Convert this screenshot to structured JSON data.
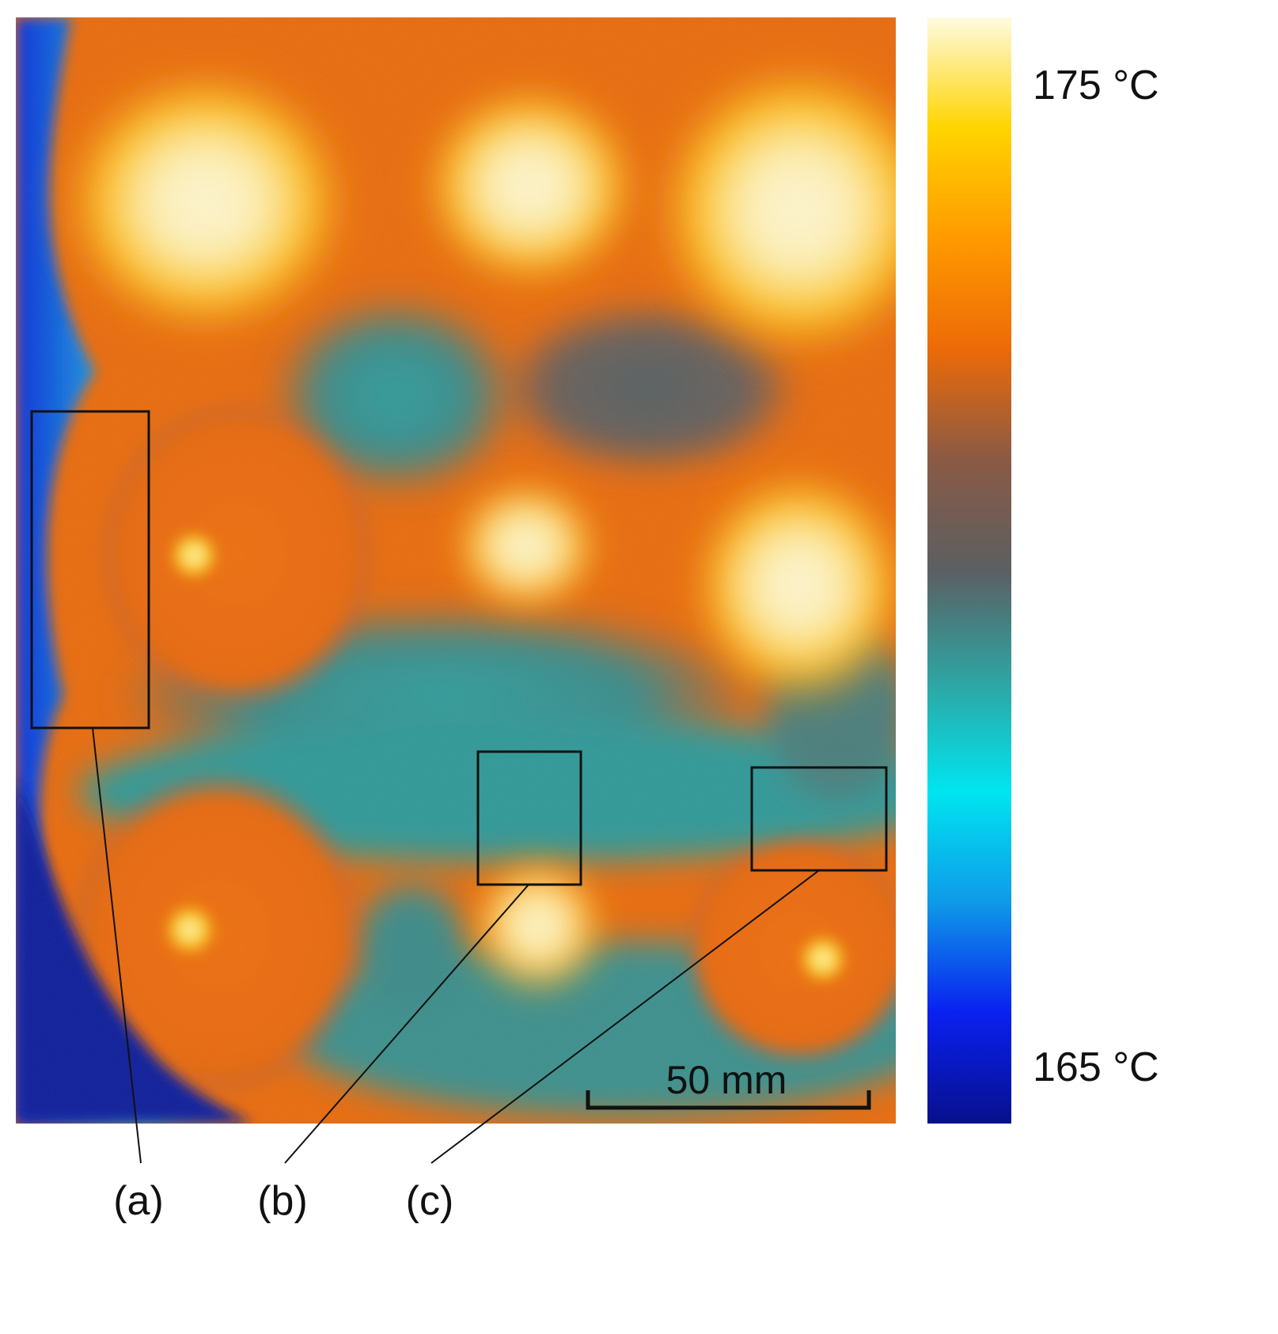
{
  "colorbar": {
    "max_label": "175 °C",
    "min_label": "165 °C",
    "stops": [
      "#fffbe0",
      "#ffd400",
      "#ff9a00",
      "#ec6a08",
      "#8a5a45",
      "#5b5f62",
      "#2fa4a2",
      "#00e5f0",
      "#0f9ae8",
      "#0a20f0",
      "#08108c"
    ]
  },
  "scale_bar": {
    "label": "50 mm"
  },
  "callouts": [
    {
      "id": "a",
      "label": "(a)"
    },
    {
      "id": "b",
      "label": "(b)"
    },
    {
      "id": "c",
      "label": "(c)"
    }
  ],
  "palette": {
    "hot": "#fff6cf",
    "warm": "#ffc21a",
    "orange": "#ea6a0c",
    "brown": "#7b5e52",
    "gray": "#5b6668",
    "teal": "#2c9c9a",
    "cyan": "#20e0e8",
    "blue": "#1040e0",
    "navy": "#0a0f80"
  }
}
